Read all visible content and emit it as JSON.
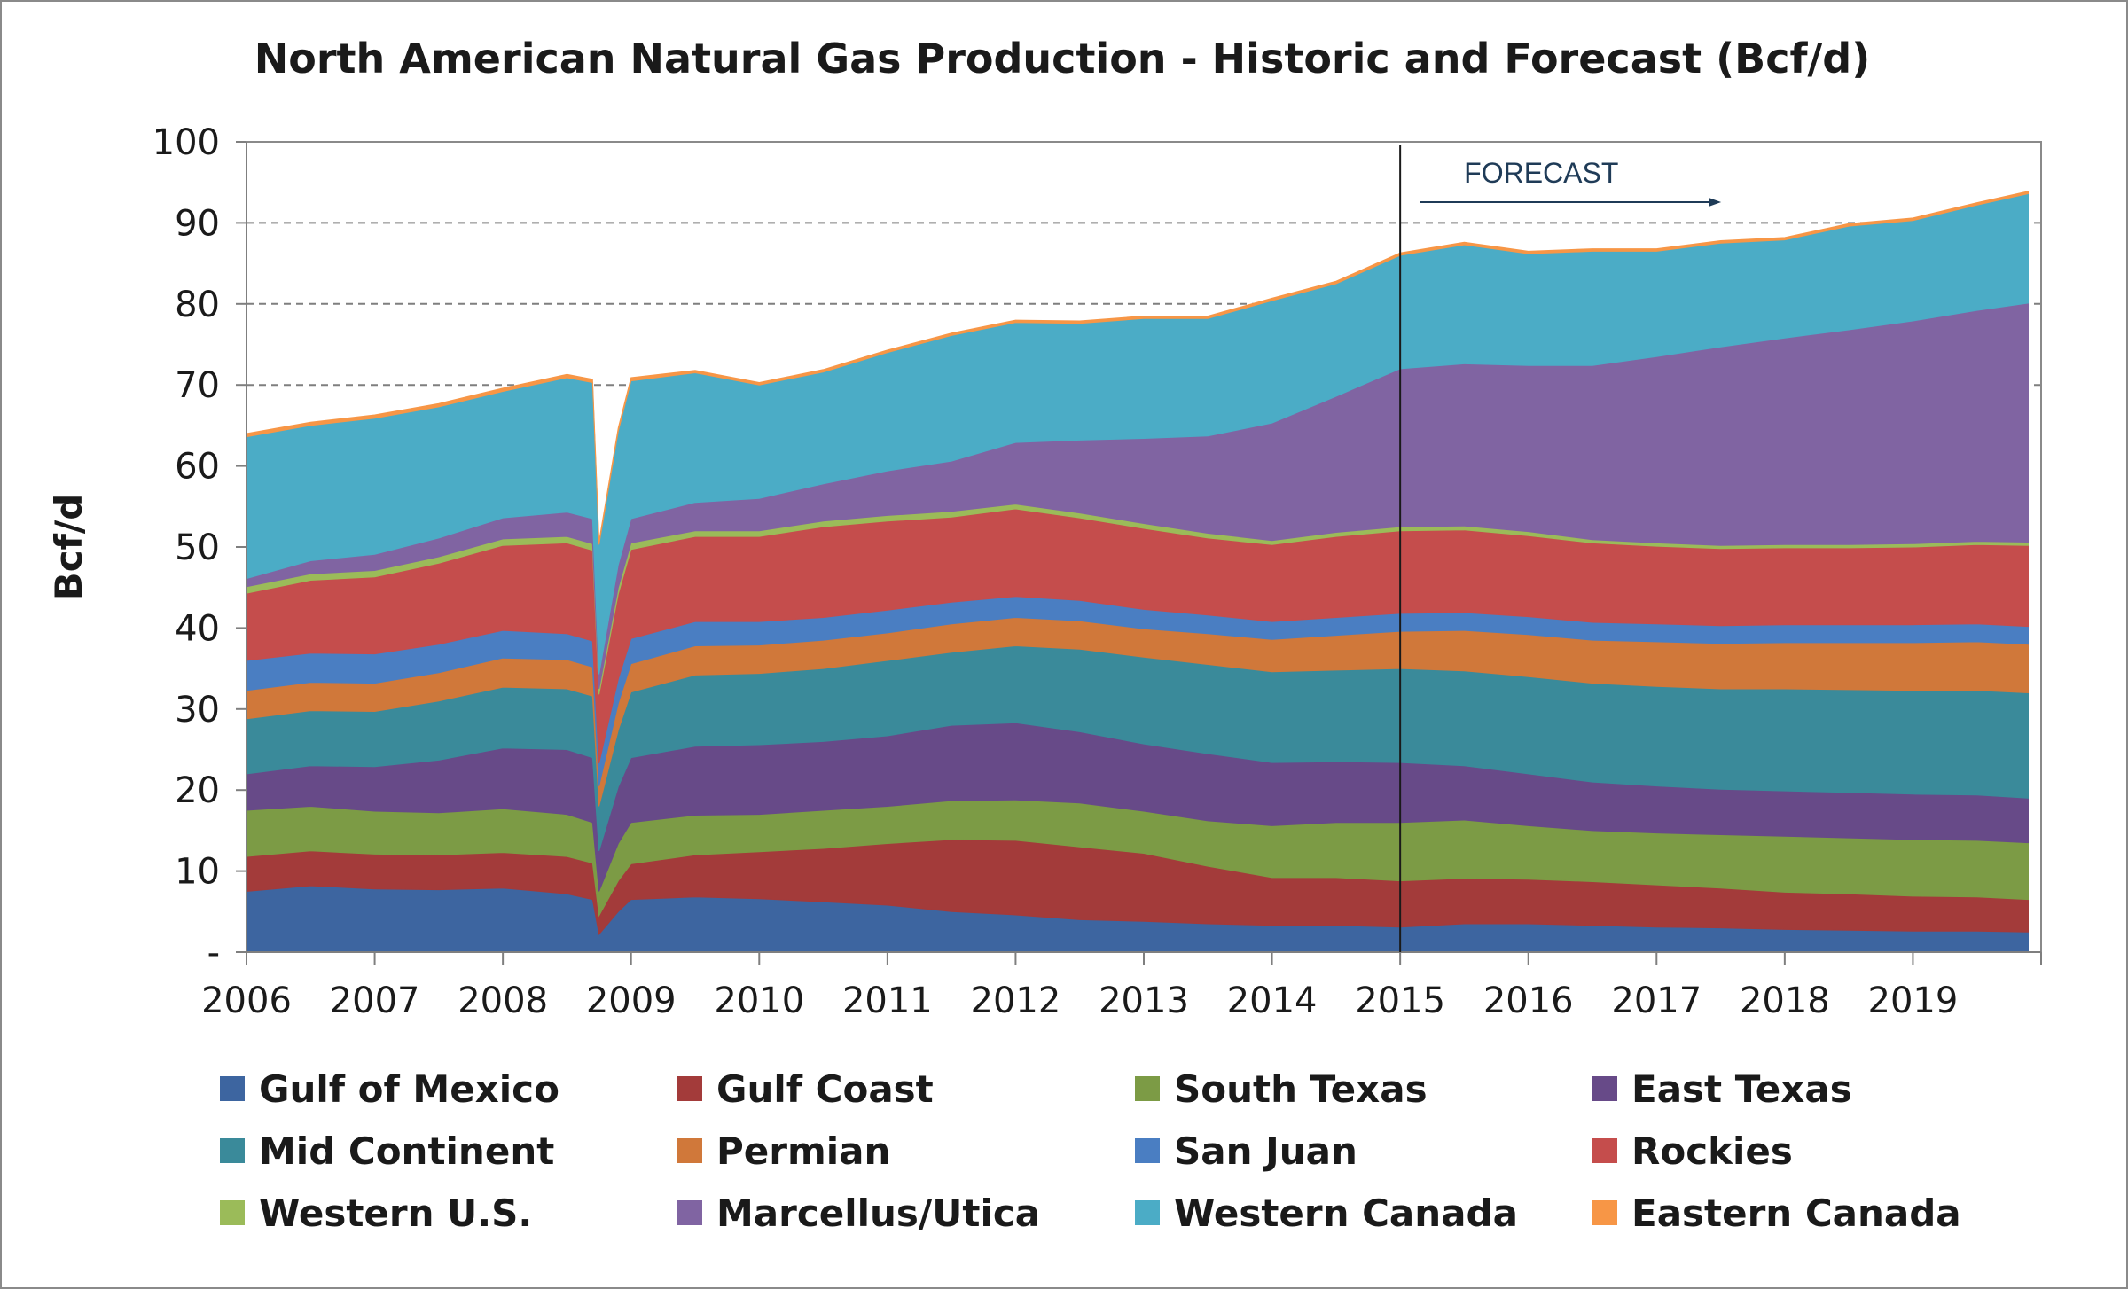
{
  "chart_data": {
    "type": "area",
    "stacked": true,
    "title": "North American Natural Gas Production - Historic and Forecast (Bcf/d)",
    "ylabel": "Bcf/d",
    "xlabel": "",
    "ylim": [
      0,
      100
    ],
    "xlim": [
      2006,
      2020
    ],
    "y_ticks": [
      {
        "value": 0,
        "label": "-"
      },
      {
        "value": 10,
        "label": "10"
      },
      {
        "value": 20,
        "label": "20"
      },
      {
        "value": 30,
        "label": "30"
      },
      {
        "value": 40,
        "label": "40"
      },
      {
        "value": 50,
        "label": "50"
      },
      {
        "value": 60,
        "label": "60"
      },
      {
        "value": 70,
        "label": "70"
      },
      {
        "value": 80,
        "label": "80"
      },
      {
        "value": 90,
        "label": "90"
      },
      {
        "value": 100,
        "label": "100"
      }
    ],
    "x_ticks": [
      "2006",
      "2007",
      "2008",
      "2009",
      "2010",
      "2011",
      "2012",
      "2013",
      "2014",
      "2015",
      "2016",
      "2017",
      "2018",
      "2019"
    ],
    "gridlines": {
      "style": "dashed",
      "values": [
        70,
        80,
        90
      ]
    },
    "forecast": {
      "start": 2015,
      "label": "FORECAST"
    },
    "legend_position": "bottom",
    "x": [
      2006.0,
      2006.5,
      2007.0,
      2007.5,
      2008.0,
      2008.5,
      2008.7,
      2008.75,
      2008.9,
      2009.0,
      2009.5,
      2010.0,
      2010.5,
      2011.0,
      2011.5,
      2012.0,
      2012.5,
      2013.0,
      2013.5,
      2014.0,
      2014.5,
      2015.0,
      2015.5,
      2016.0,
      2016.5,
      2017.0,
      2017.5,
      2018.0,
      2018.5,
      2019.0,
      2019.5,
      2019.9
    ],
    "series": [
      {
        "name": "Gulf of Mexico",
        "color": "#3d65a0",
        "values": [
          7.5,
          8.2,
          7.8,
          7.7,
          7.9,
          7.2,
          6.5,
          2.2,
          5.0,
          6.5,
          6.8,
          6.6,
          6.2,
          5.8,
          5.0,
          4.6,
          4.0,
          3.8,
          3.5,
          3.3,
          3.3,
          3.1,
          3.5,
          3.5,
          3.3,
          3.1,
          3.0,
          2.8,
          2.7,
          2.6,
          2.6,
          2.5
        ]
      },
      {
        "name": "Gulf Coast",
        "color": "#a33b3a",
        "values": [
          4.3,
          4.3,
          4.3,
          4.3,
          4.4,
          4.6,
          4.5,
          2.3,
          3.8,
          4.4,
          5.2,
          5.8,
          6.6,
          7.6,
          8.9,
          9.2,
          9.0,
          8.4,
          7.1,
          5.9,
          5.9,
          5.7,
          5.6,
          5.5,
          5.4,
          5.2,
          4.9,
          4.6,
          4.5,
          4.3,
          4.2,
          4.0
        ]
      },
      {
        "name": "South Texas",
        "color": "#7c9b45",
        "values": [
          5.7,
          5.5,
          5.3,
          5.2,
          5.4,
          5.2,
          5.0,
          3.0,
          4.6,
          5.1,
          4.9,
          4.6,
          4.7,
          4.6,
          4.8,
          5.0,
          5.4,
          5.2,
          5.6,
          6.4,
          6.8,
          7.2,
          7.2,
          6.6,
          6.3,
          6.4,
          6.6,
          6.9,
          6.9,
          7.0,
          7.0,
          7.0
        ]
      },
      {
        "name": "East Texas",
        "color": "#674a88",
        "values": [
          4.5,
          5.0,
          5.5,
          6.5,
          7.5,
          8.0,
          8.0,
          5.0,
          7.0,
          8.0,
          8.5,
          8.6,
          8.5,
          8.7,
          9.3,
          9.5,
          8.8,
          8.3,
          8.3,
          7.8,
          7.5,
          7.4,
          6.7,
          6.4,
          6.0,
          5.8,
          5.6,
          5.6,
          5.6,
          5.6,
          5.6,
          5.5
        ]
      },
      {
        "name": "Mid Continent",
        "color": "#3a8a9a",
        "values": [
          6.8,
          6.8,
          6.8,
          7.3,
          7.5,
          7.5,
          7.6,
          5.5,
          7.0,
          8.1,
          8.8,
          8.8,
          9.0,
          9.3,
          9.0,
          9.5,
          10.2,
          10.7,
          11.0,
          11.2,
          11.3,
          11.6,
          11.7,
          12.0,
          12.2,
          12.3,
          12.4,
          12.6,
          12.7,
          12.8,
          12.9,
          13.0
        ]
      },
      {
        "name": "Permian",
        "color": "#d0783a",
        "values": [
          3.5,
          3.5,
          3.5,
          3.5,
          3.6,
          3.6,
          3.6,
          2.5,
          3.3,
          3.5,
          3.6,
          3.5,
          3.5,
          3.4,
          3.5,
          3.5,
          3.5,
          3.5,
          3.8,
          4.0,
          4.3,
          4.6,
          5.0,
          5.2,
          5.3,
          5.5,
          5.6,
          5.7,
          5.8,
          5.9,
          6.0,
          6.0
        ]
      },
      {
        "name": "San Juan",
        "color": "#4a7ec2",
        "values": [
          3.7,
          3.6,
          3.6,
          3.5,
          3.4,
          3.2,
          3.2,
          2.8,
          3.0,
          3.1,
          3.0,
          2.9,
          2.8,
          2.8,
          2.7,
          2.6,
          2.5,
          2.4,
          2.3,
          2.2,
          2.2,
          2.2,
          2.2,
          2.2,
          2.2,
          2.2,
          2.2,
          2.2,
          2.2,
          2.2,
          2.2,
          2.2
        ]
      },
      {
        "name": "Rockies",
        "color": "#c54d4c",
        "values": [
          8.3,
          9.0,
          9.5,
          10.0,
          10.5,
          11.2,
          11.2,
          8.5,
          10.5,
          11.0,
          10.5,
          10.5,
          11.2,
          11.0,
          10.5,
          10.8,
          10.2,
          10.0,
          9.5,
          9.5,
          10.0,
          10.2,
          10.2,
          10.0,
          9.8,
          9.6,
          9.5,
          9.5,
          9.5,
          9.6,
          9.8,
          10.0
        ]
      },
      {
        "name": "Western U.S.",
        "color": "#9bbb59",
        "values": [
          0.8,
          0.8,
          0.8,
          0.8,
          0.8,
          0.8,
          0.8,
          0.7,
          0.8,
          0.8,
          0.7,
          0.7,
          0.7,
          0.7,
          0.7,
          0.6,
          0.6,
          0.6,
          0.6,
          0.5,
          0.5,
          0.5,
          0.5,
          0.5,
          0.4,
          0.4,
          0.4,
          0.4,
          0.4,
          0.4,
          0.4,
          0.4
        ]
      },
      {
        "name": "Marcellus/Utica",
        "color": "#8064a2",
        "values": [
          1.0,
          1.6,
          2.0,
          2.3,
          2.6,
          3.0,
          3.1,
          1.8,
          2.8,
          3.0,
          3.5,
          4.0,
          4.6,
          5.5,
          6.2,
          7.6,
          9.0,
          10.5,
          12.0,
          14.5,
          16.8,
          19.5,
          20.0,
          20.5,
          21.5,
          23.0,
          24.5,
          25.5,
          26.5,
          27.5,
          28.5,
          29.5
        ]
      },
      {
        "name": "Western Canada",
        "color": "#4bacc6",
        "values": [
          17.5,
          16.7,
          16.8,
          16.2,
          15.6,
          16.6,
          16.8,
          16.0,
          16.5,
          17.0,
          16.0,
          14.0,
          13.8,
          14.6,
          15.5,
          14.8,
          14.4,
          14.8,
          14.5,
          15.1,
          13.9,
          14.0,
          14.7,
          13.8,
          14.1,
          13.0,
          12.8,
          12.1,
          12.8,
          12.4,
          13.0,
          13.5
        ]
      },
      {
        "name": "Eastern Canada",
        "color": "#f79646",
        "values": [
          0.4,
          0.4,
          0.4,
          0.4,
          0.4,
          0.4,
          0.4,
          0.4,
          0.4,
          0.4,
          0.3,
          0.3,
          0.3,
          0.3,
          0.3,
          0.3,
          0.3,
          0.3,
          0.3,
          0.3,
          0.3,
          0.3,
          0.3,
          0.3,
          0.3,
          0.3,
          0.3,
          0.3,
          0.3,
          0.3,
          0.3,
          0.3
        ]
      }
    ]
  }
}
